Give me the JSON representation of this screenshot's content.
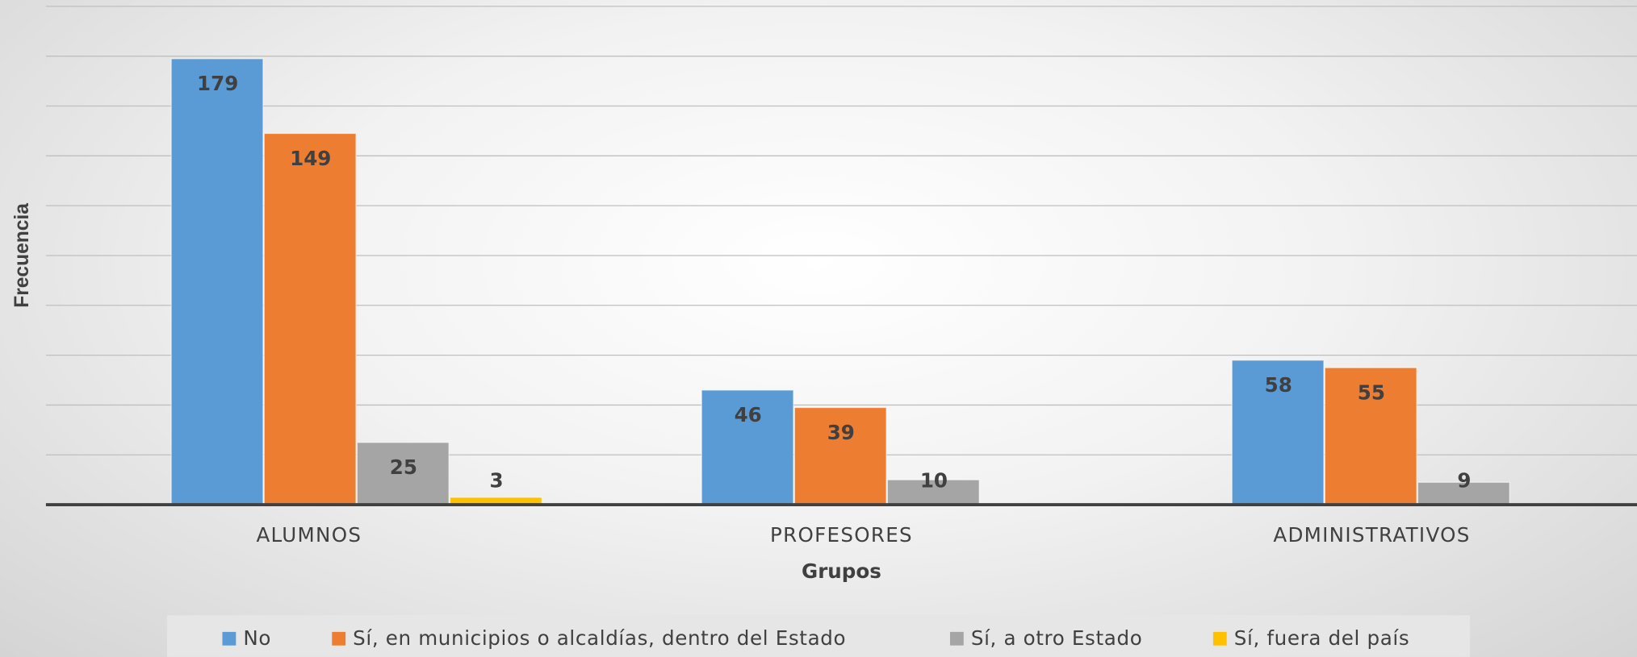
{
  "chart_data": {
    "type": "bar",
    "x_label": "Grupos",
    "y_label": "Frecuencia",
    "categories": [
      "ALUMNOS",
      "PROFESORES",
      "ADMINISTRATIVOS"
    ],
    "series": [
      {
        "name": "No",
        "color": "#5b9bd5",
        "values": [
          179,
          46,
          58
        ]
      },
      {
        "name": "Sí, en municipios o alcaldías, dentro del Estado",
        "color": "#ed7d31",
        "values": [
          149,
          39,
          55
        ]
      },
      {
        "name": "Sí, a otro Estado",
        "color": "#a5a5a5",
        "values": [
          25,
          10,
          9
        ]
      },
      {
        "name": "Sí, fuera del país",
        "color": "#ffc000",
        "values": [
          3,
          null,
          null
        ]
      }
    ],
    "ylim": [
      0,
      200
    ],
    "yticks": [
      0,
      20,
      40,
      60,
      80,
      100,
      120,
      140,
      160,
      180,
      200
    ],
    "grid": true,
    "legend": "bottom"
  }
}
